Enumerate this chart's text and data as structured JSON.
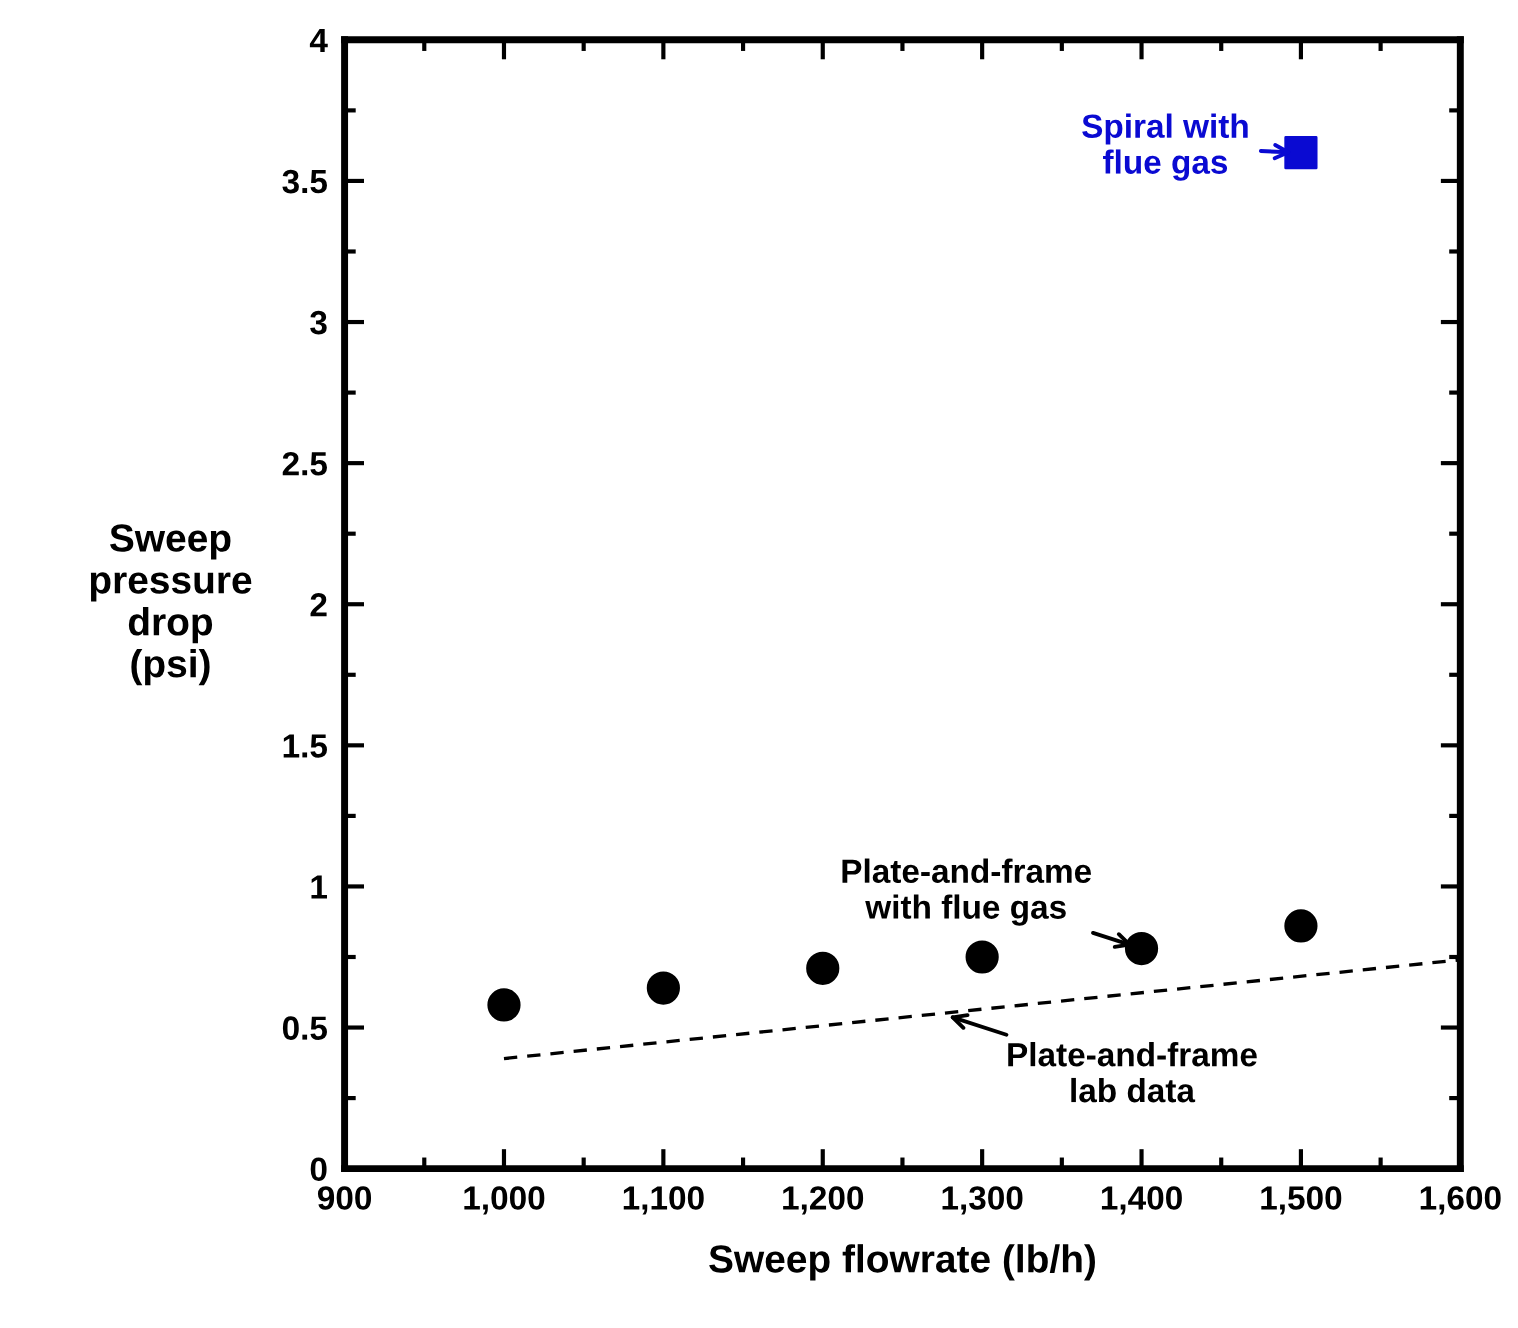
{
  "chart_data": {
    "type": "scatter",
    "xlabel": "Sweep flowrate (lb/h)",
    "ylabel": "Sweep\npressure\ndrop\n(psi)",
    "series": [
      {
        "color": "#000000",
        "marker": "circle",
        "x": [
          1000,
          1100,
          1200,
          1300,
          1400,
          1500
        ],
        "values": [
          0.58,
          0.64,
          0.71,
          0.75,
          0.78,
          0.86
        ]
      },
      {
        "type": "line",
        "color": "#000000",
        "line_style": "dashed",
        "marker": "none",
        "x": [
          1000,
          1600
        ],
        "values": [
          0.39,
          0.74
        ]
      },
      {
        "color": "#0a0ad2",
        "marker": "square",
        "x": [
          1500
        ],
        "values": [
          3.6
        ]
      }
    ],
    "annotations": [
      {
        "text": "Spiral with\nflue gas",
        "x": 1500,
        "y": 3.6
      },
      {
        "text": "Plate-and-frame\nwith flue gas",
        "x": 1400,
        "y": 0.78
      },
      {
        "text": "Plate-and-frame\nlab data",
        "x": 1274,
        "y": 0.55
      }
    ],
    "xlim": [
      900,
      1600
    ],
    "ylim": [
      0,
      4
    ],
    "xticks": [
      900,
      {
        "value": 1000,
        "label": "1,000"
      },
      {
        "value": 1100,
        "label": "1,100"
      },
      {
        "value": 1200,
        "label": "1,200"
      },
      {
        "value": 1300,
        "label": "1,300"
      },
      {
        "value": 1400,
        "label": "1,400"
      },
      {
        "value": 1500,
        "label": "1,500"
      },
      {
        "value": 1600,
        "label": "1,600"
      }
    ],
    "yticks": [
      0,
      0.5,
      1,
      1.5,
      2,
      2.5,
      3,
      3.5,
      4
    ],
    "grid": false,
    "legend": false
  }
}
